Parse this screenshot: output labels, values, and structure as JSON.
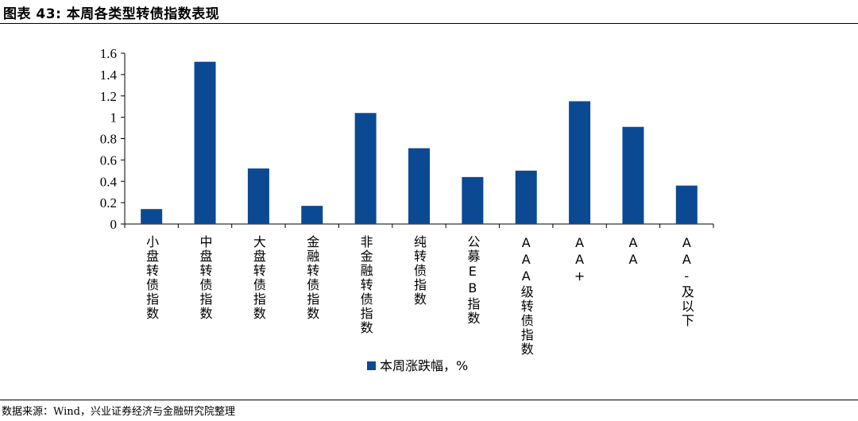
{
  "figure": {
    "title": "图表 43:  本周各类型转债指数表现",
    "source": "数据来源：Wind，兴业证券经济与金融研究院整理"
  },
  "colors": {
    "bar": "#0B4A93",
    "axis": "#000000"
  },
  "chart_data": {
    "type": "bar",
    "categories": [
      "小盘转债指数",
      "中盘转债指数",
      "大盘转债指数",
      "金融转债指数",
      "非金融转债指数",
      "纯转债指数",
      "公募EB指数",
      "AAA级转债指数",
      "AA+",
      "AA",
      "AA-及以下"
    ],
    "series": [
      {
        "name": "本周涨跌幅，%",
        "values": [
          0.14,
          1.52,
          0.52,
          0.17,
          1.04,
          0.71,
          0.44,
          0.5,
          1.15,
          0.91,
          0.36
        ]
      }
    ],
    "yticks": [
      "0",
      "0.2",
      "0.4",
      "0.6",
      "0.8",
      "1",
      "1.2",
      "1.4",
      "1.6"
    ],
    "ylim": [
      0,
      1.6
    ],
    "grid": false,
    "legend": "bottom-center"
  }
}
